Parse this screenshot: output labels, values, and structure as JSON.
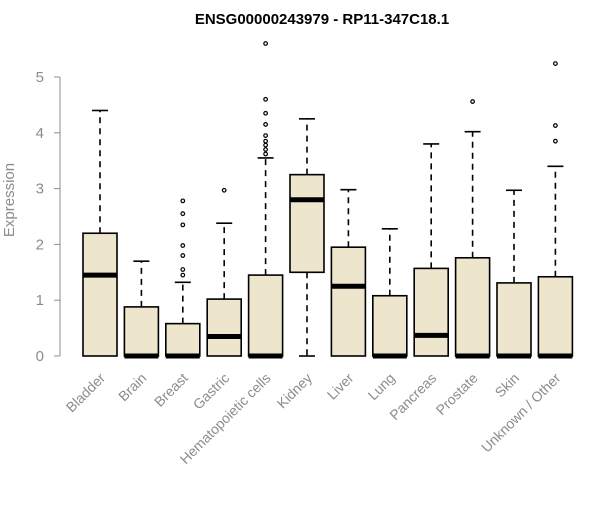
{
  "chart_data": {
    "type": "boxplot",
    "title": "ENSG00000243979 - RP11-347C18.1",
    "ylabel": "Expression",
    "xlabel": "",
    "ylim": [
      0,
      5.6
    ],
    "yticks": [
      0,
      1,
      2,
      3,
      4,
      5
    ],
    "grid": false,
    "legend": false,
    "box_fill": "#ede5cc",
    "box_stroke": "#000000",
    "categories": [
      "Bladder",
      "Brain",
      "Breast",
      "Gastric",
      "Hematopoietic cells",
      "Kidney",
      "Liver",
      "Lung",
      "Pancreas",
      "Prostate",
      "Skin",
      "Unknown / Other"
    ],
    "boxes": [
      {
        "category": "Bladder",
        "min": 0,
        "q1": 0,
        "median": 1.45,
        "q3": 2.2,
        "max": 4.4,
        "outliers": []
      },
      {
        "category": "Brain",
        "min": 0,
        "q1": 0,
        "median": 0,
        "q3": 0.88,
        "max": 1.7,
        "outliers": []
      },
      {
        "category": "Breast",
        "min": 0,
        "q1": 0,
        "median": 0,
        "q3": 0.58,
        "max": 1.32,
        "outliers": [
          1.45,
          1.55,
          1.8,
          1.98,
          2.35,
          2.55,
          2.78
        ]
      },
      {
        "category": "Gastric",
        "min": 0,
        "q1": 0,
        "median": 0.35,
        "q3": 1.02,
        "max": 2.38,
        "outliers": [
          2.97
        ]
      },
      {
        "category": "Hematopoietic cells",
        "min": 0,
        "q1": 0,
        "median": 0,
        "q3": 1.45,
        "max": 3.55,
        "outliers": [
          3.62,
          3.7,
          3.78,
          3.85,
          3.95,
          4.15,
          4.35,
          4.6,
          5.6
        ]
      },
      {
        "category": "Kidney",
        "min": 0,
        "q1": 1.5,
        "median": 2.8,
        "q3": 3.25,
        "max": 4.25,
        "outliers": []
      },
      {
        "category": "Liver",
        "min": 0,
        "q1": 0,
        "median": 1.25,
        "q3": 1.95,
        "max": 2.98,
        "outliers": []
      },
      {
        "category": "Lung",
        "min": 0,
        "q1": 0,
        "median": 0,
        "q3": 1.08,
        "max": 2.28,
        "outliers": []
      },
      {
        "category": "Pancreas",
        "min": 0,
        "q1": 0,
        "median": 0.37,
        "q3": 1.57,
        "max": 3.8,
        "outliers": []
      },
      {
        "category": "Prostate",
        "min": 0,
        "q1": 0,
        "median": 0,
        "q3": 1.76,
        "max": 4.02,
        "outliers": [
          4.56
        ]
      },
      {
        "category": "Skin",
        "min": 0,
        "q1": 0,
        "median": 0,
        "q3": 1.31,
        "max": 2.97,
        "outliers": []
      },
      {
        "category": "Unknown / Other",
        "min": 0,
        "q1": 0,
        "median": 0,
        "q3": 1.42,
        "max": 3.4,
        "outliers": [
          3.85,
          4.13,
          5.24
        ]
      }
    ]
  }
}
